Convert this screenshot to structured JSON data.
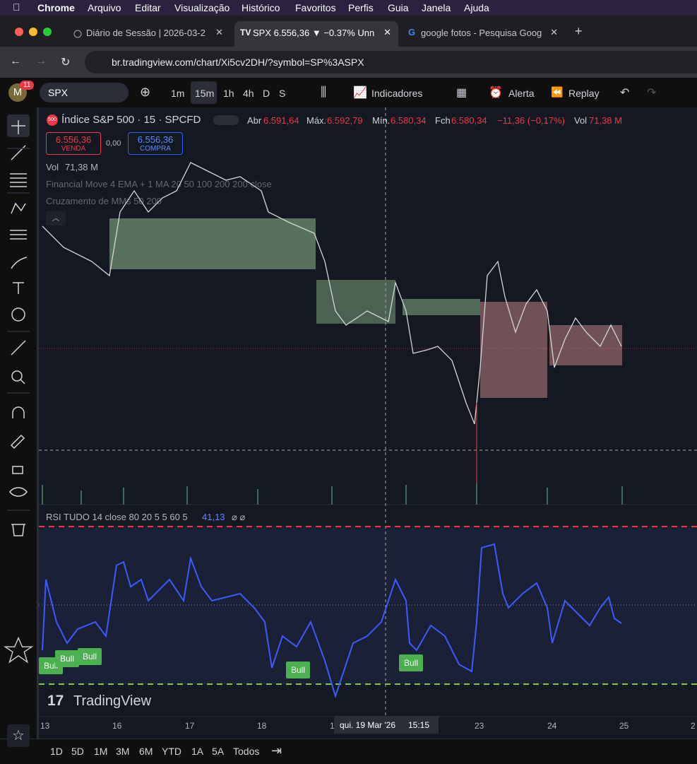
{
  "menu_bar": {
    "app": "Chrome",
    "items": [
      "Arquivo",
      "Editar",
      "Visualização",
      "Histórico",
      "Favoritos",
      "Perfis",
      "Guia",
      "Janela",
      "Ajuda"
    ]
  },
  "tabs": [
    {
      "title": "Diário de Sessão | 2026-03-2"
    },
    {
      "title": "SPX 6.556,36 ▼ −0.37% Unn"
    },
    {
      "title": "google fotos - Pesquisa Goog"
    }
  ],
  "address_bar": {
    "url": "br.tradingview.com/chart/Xi5cv2DH/?symbol=SP%3ASPX"
  },
  "toolbar": {
    "badge": "11",
    "avatar": "M",
    "symbol": "SPX",
    "intervals": [
      "1m",
      "15m",
      "1h",
      "4h",
      "D",
      "S"
    ],
    "indicators": "Indicadores",
    "alert": "Alerta",
    "replay": "Replay"
  },
  "legend": {
    "icon": "500",
    "title": "Índice S&P 500 · 15 · SPCFD",
    "open_label": "Abr",
    "open": "6.591,64",
    "high_label": "Máx.",
    "high": "6.592,79",
    "low_label": "Mín.",
    "low": "6.580,34",
    "close_label": "Fch",
    "close": "6.580,34",
    "change": "−11,36 (−0,17%)",
    "vol_label": "Vol",
    "vol": "71,38 M"
  },
  "trade": {
    "sell_price": "6.556,36",
    "sell_label": "VENDA",
    "spread": "0,00",
    "buy_price": "6.556,36",
    "buy_label": "COMPRA"
  },
  "volume_line": {
    "label": "Vol",
    "value": "71,38 M"
  },
  "indicators": [
    "Financial Move 4 EMA + 1 MA 20 50 100 200 200 close",
    "Cruzamento de MMs 50 200"
  ],
  "rsi": {
    "title": "RSI TUDO 14 close 80 20 5 5 60 5",
    "value": "41,13",
    "extra": "⌀ ⌀"
  },
  "bull_labels": [
    "Bull",
    "Bull",
    "Bull",
    "Bull",
    "Bull"
  ],
  "watermark": "TradingView",
  "x_axis": {
    "labels": [
      "13",
      "16",
      "17",
      "18",
      "1",
      "23",
      "24",
      "25",
      "2"
    ],
    "crosshair_date": "qui. 19 Mar '26",
    "crosshair_time": "15:15"
  },
  "ranges": [
    "1D",
    "5D",
    "1M",
    "3M",
    "6M",
    "YTD",
    "1A",
    "5A",
    "Todos"
  ]
}
